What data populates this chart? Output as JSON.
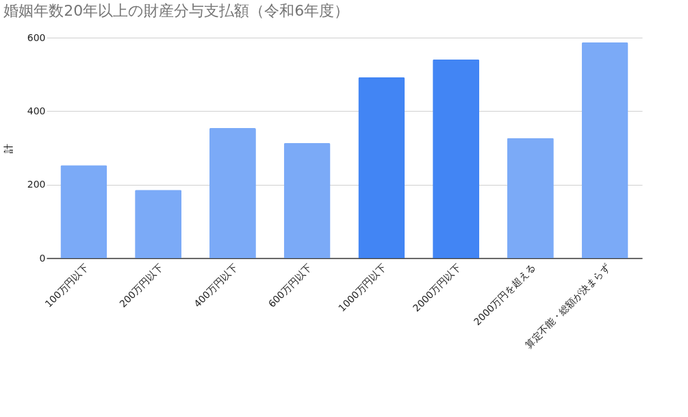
{
  "chart_data": {
    "type": "bar",
    "title": "婚姻年数20年以上の財産分与支払額（令和6年度）",
    "ylabel": "計",
    "categories": [
      "100万円以下",
      "200万円以下",
      "400万円以下",
      "600万円以下",
      "1000万円以下",
      "2000万円以下",
      "2000万円を超える",
      "算定不能・総額が決まらず"
    ],
    "values": [
      253,
      186,
      354,
      313,
      492,
      541,
      327,
      587
    ],
    "colors": [
      "#7baaf7",
      "#7baaf7",
      "#7baaf7",
      "#7baaf7",
      "#4285f4",
      "#4285f4",
      "#7baaf7",
      "#7baaf7"
    ],
    "ylim": [
      0,
      600
    ],
    "yticks": [
      0,
      200,
      400,
      600
    ],
    "grid": "y",
    "legend": false
  }
}
